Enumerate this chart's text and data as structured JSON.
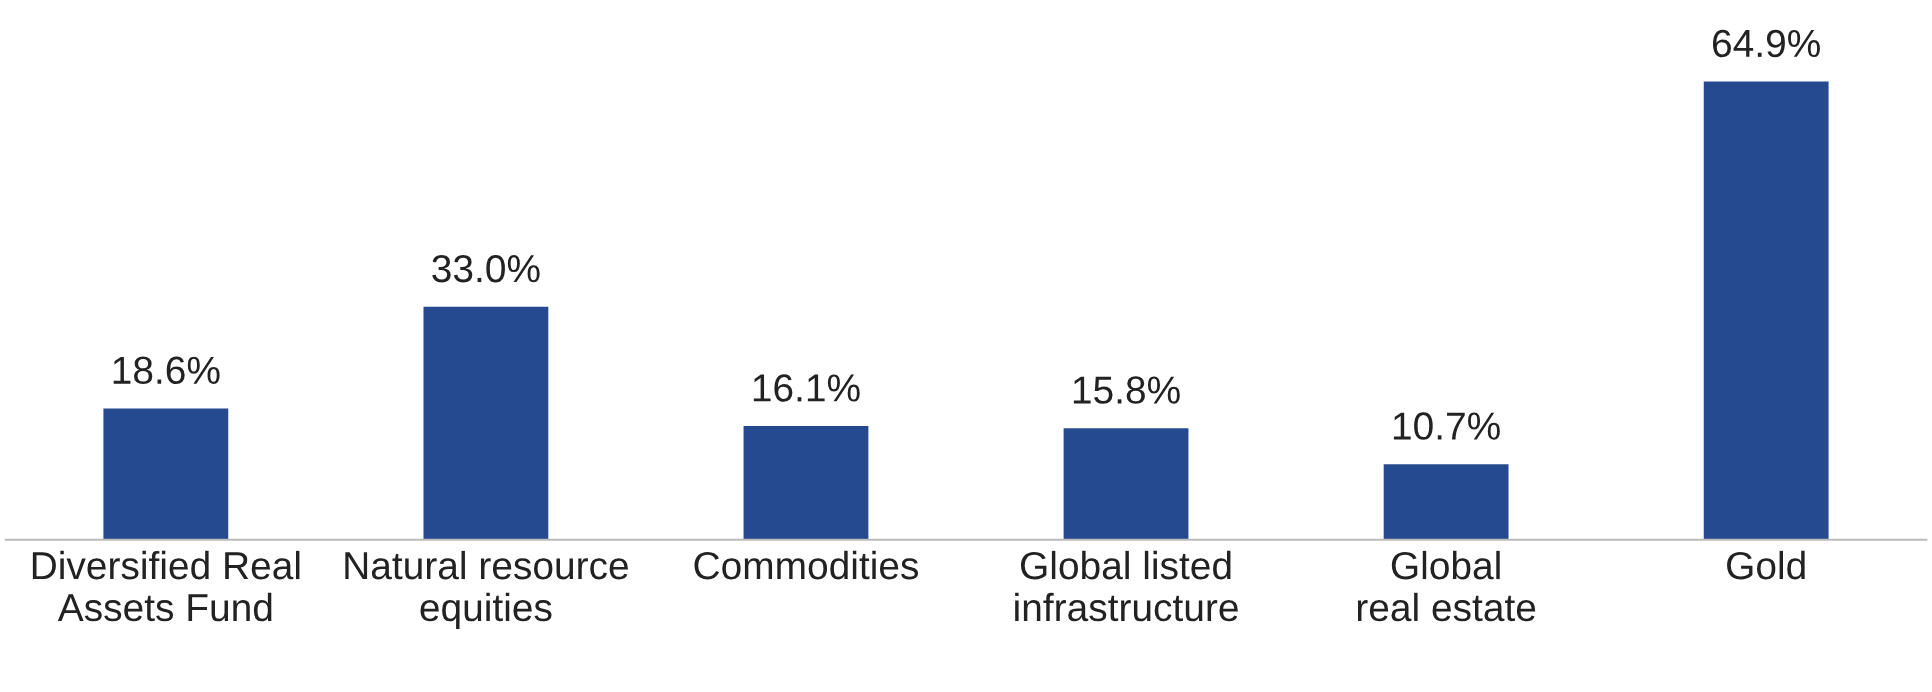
{
  "chart_data": {
    "type": "bar",
    "categories": [
      "Diversified Real\nAssets Fund",
      "Natural resource\nequities",
      "Commodities",
      "Global listed\ninfrastructure",
      "Global\nreal estate",
      "Gold"
    ],
    "values": [
      18.6,
      33.0,
      16.1,
      15.8,
      10.7,
      64.9
    ],
    "value_labels": [
      "18.6%",
      "33.0%",
      "16.1%",
      "15.8%",
      "10.7%",
      "64.9%"
    ],
    "color": "#264a8f",
    "grid": false,
    "legend": false,
    "tick_labels": "x"
  }
}
